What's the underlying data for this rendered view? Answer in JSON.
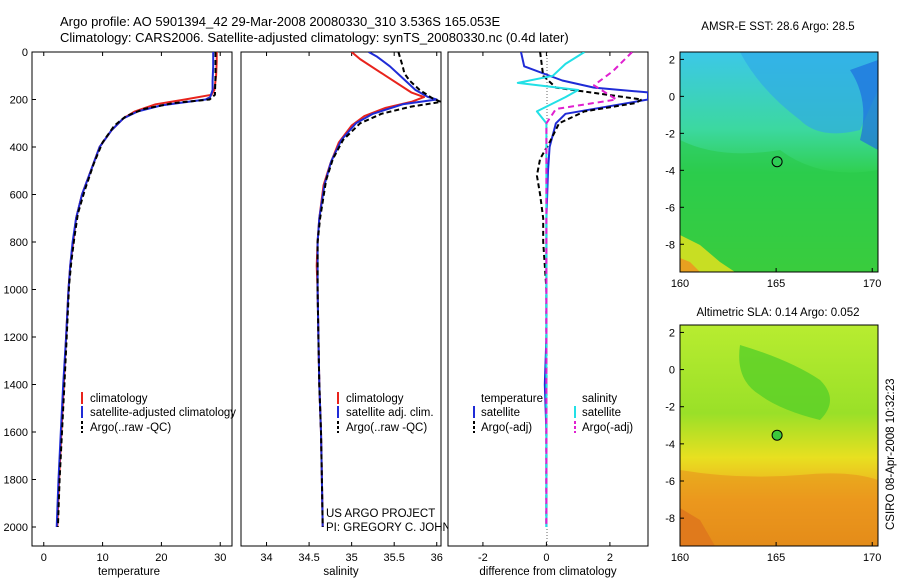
{
  "header": {
    "line1": "Argo profile: AO 5901394_42 29-Mar-2008 20080330_310 3.536S 165.053E",
    "line2": "Climatology: CARS2006. Satellite-adjusted climatology: synTS_20080330.nc (0.4d later)"
  },
  "colors": {
    "climatology": "#e8231c",
    "satellite": "#1f2bd6",
    "argo": "#000000",
    "sal_satellite": "#22e0e6",
    "sal_argo": "#e020d0"
  },
  "credit": {
    "line1": "US ARGO PROJECT",
    "line2": "PI: GREGORY C. JOHNSON"
  },
  "timestamp": "CSIRO 08-Apr-2008 10:32:23",
  "depth_axis": {
    "ticks": [
      0,
      200,
      400,
      600,
      800,
      1000,
      1200,
      1400,
      1600,
      1800,
      2000
    ],
    "range": [
      0,
      2080
    ]
  },
  "chart_data": [
    {
      "type": "line",
      "name": "temperature-profile",
      "xlabel": "temperature",
      "xlim": [
        -2,
        32
      ],
      "xticks": [
        0,
        10,
        20,
        30
      ],
      "ylim": [
        0,
        2080
      ],
      "legend": [
        "climatology",
        "satellite-adjusted climatology",
        "Argo(..raw -QC)"
      ],
      "series": [
        {
          "name": "climatology",
          "color": "#e8231c",
          "dash": "",
          "points": [
            [
              29.4,
              0
            ],
            [
              29.4,
              40
            ],
            [
              29.3,
              100
            ],
            [
              29.0,
              160
            ],
            [
              28.5,
              180
            ],
            [
              24.0,
              200
            ],
            [
              19.0,
              220
            ],
            [
              15.5,
              250
            ],
            [
              13.5,
              280
            ],
            [
              11.5,
              330
            ],
            [
              9.5,
              400
            ],
            [
              8.0,
              500
            ],
            [
              6.5,
              600
            ],
            [
              5.5,
              700
            ],
            [
              5.0,
              800
            ],
            [
              4.5,
              900
            ],
            [
              4.2,
              1000
            ],
            [
              3.8,
              1200
            ],
            [
              3.4,
              1400
            ],
            [
              3.0,
              1600
            ],
            [
              2.6,
              1800
            ],
            [
              2.3,
              2000
            ]
          ]
        },
        {
          "name": "satellite",
          "color": "#1f2bd6",
          "dash": "",
          "points": [
            [
              28.8,
              0
            ],
            [
              28.8,
              60
            ],
            [
              28.7,
              120
            ],
            [
              28.7,
              160
            ],
            [
              28.3,
              190
            ],
            [
              27.5,
              200
            ],
            [
              20.0,
              225
            ],
            [
              16.0,
              250
            ],
            [
              13.5,
              280
            ],
            [
              11.5,
              330
            ],
            [
              9.5,
              400
            ],
            [
              8.0,
              500
            ],
            [
              6.5,
              600
            ],
            [
              5.5,
              700
            ],
            [
              4.9,
              800
            ],
            [
              4.5,
              900
            ],
            [
              4.2,
              1000
            ],
            [
              3.8,
              1200
            ],
            [
              3.3,
              1400
            ],
            [
              2.9,
              1600
            ],
            [
              2.5,
              1800
            ],
            [
              2.2,
              2000
            ]
          ]
        },
        {
          "name": "Argo",
          "color": "#000000",
          "dash": "5,3",
          "points": [
            [
              29.2,
              0
            ],
            [
              29.2,
              100
            ],
            [
              29.1,
              180
            ],
            [
              28.2,
              200
            ],
            [
              22.0,
              215
            ],
            [
              17.0,
              240
            ],
            [
              14.0,
              270
            ],
            [
              12.0,
              310
            ],
            [
              10.0,
              380
            ],
            [
              8.5,
              470
            ],
            [
              7.0,
              580
            ],
            [
              5.8,
              680
            ],
            [
              5.2,
              780
            ],
            [
              4.7,
              880
            ],
            [
              4.3,
              980
            ],
            [
              3.9,
              1200
            ],
            [
              3.5,
              1400
            ],
            [
              3.1,
              1600
            ],
            [
              2.7,
              1800
            ],
            [
              2.4,
              2000
            ]
          ]
        }
      ]
    },
    {
      "type": "line",
      "name": "salinity-profile",
      "xlabel": "salinity",
      "xlim": [
        33.7,
        36.05
      ],
      "xticks": [
        34,
        34.5,
        35,
        35.5,
        36
      ],
      "ylim": [
        0,
        2080
      ],
      "legend": [
        "climatology",
        "satellite adj. clim.",
        "Argo(..raw -QC)"
      ],
      "series": [
        {
          "name": "climatology",
          "color": "#e8231c",
          "dash": "",
          "points": [
            [
              35.0,
              0
            ],
            [
              35.1,
              30
            ],
            [
              35.4,
              100
            ],
            [
              35.7,
              170
            ],
            [
              35.85,
              190
            ],
            [
              35.7,
              210
            ],
            [
              35.4,
              235
            ],
            [
              35.15,
              270
            ],
            [
              35.0,
              310
            ],
            [
              34.85,
              380
            ],
            [
              34.75,
              470
            ],
            [
              34.67,
              560
            ],
            [
              34.62,
              700
            ],
            [
              34.6,
              800
            ],
            [
              34.59,
              900
            ],
            [
              34.6,
              1000
            ],
            [
              34.61,
              1200
            ],
            [
              34.62,
              1400
            ],
            [
              34.64,
              1600
            ],
            [
              34.65,
              1800
            ],
            [
              34.66,
              2000
            ]
          ]
        },
        {
          "name": "satellite",
          "color": "#1f2bd6",
          "dash": "",
          "points": [
            [
              35.2,
              0
            ],
            [
              35.3,
              20
            ],
            [
              35.45,
              60
            ],
            [
              35.6,
              110
            ],
            [
              35.75,
              160
            ],
            [
              35.9,
              190
            ],
            [
              36.0,
              200
            ],
            [
              35.6,
              220
            ],
            [
              35.25,
              260
            ],
            [
              35.05,
              300
            ],
            [
              34.88,
              370
            ],
            [
              34.76,
              460
            ],
            [
              34.68,
              560
            ],
            [
              34.62,
              700
            ],
            [
              34.6,
              800
            ],
            [
              34.6,
              900
            ],
            [
              34.6,
              1000
            ],
            [
              34.61,
              1200
            ],
            [
              34.62,
              1400
            ],
            [
              34.64,
              1600
            ],
            [
              34.65,
              1800
            ],
            [
              34.66,
              2000
            ]
          ]
        },
        {
          "name": "Argo",
          "color": "#000000",
          "dash": "5,3",
          "points": [
            [
              35.55,
              0
            ],
            [
              35.6,
              60
            ],
            [
              35.62,
              90
            ],
            [
              35.68,
              120
            ],
            [
              35.8,
              160
            ],
            [
              35.95,
              195
            ],
            [
              36.05,
              210
            ],
            [
              35.7,
              230
            ],
            [
              35.35,
              260
            ],
            [
              35.1,
              300
            ],
            [
              34.9,
              370
            ],
            [
              34.78,
              450
            ],
            [
              34.7,
              540
            ],
            [
              34.63,
              700
            ],
            [
              34.6,
              800
            ],
            [
              34.6,
              900
            ],
            [
              34.6,
              1000
            ],
            [
              34.61,
              1200
            ],
            [
              34.62,
              1400
            ],
            [
              34.64,
              1600
            ],
            [
              34.65,
              1800
            ],
            [
              34.66,
              2000
            ]
          ]
        }
      ]
    },
    {
      "type": "line",
      "name": "difference-profile",
      "xlabel": "difference from climatology",
      "xlim": [
        -3.1,
        3.2
      ],
      "xticks": [
        -2,
        0,
        2
      ],
      "ylim": [
        0,
        2080
      ],
      "legend_groups": [
        {
          "title": "temperature",
          "items": [
            "satellite",
            "Argo(-adj)"
          ]
        },
        {
          "title": "salinity",
          "items": [
            "satellite",
            "Argo(-adj)"
          ]
        }
      ],
      "series": [
        {
          "name": "temperature satellite",
          "color": "#1f2bd6",
          "dash": "",
          "points": [
            [
              -0.8,
              0
            ],
            [
              -0.7,
              60
            ],
            [
              0.5,
              120
            ],
            [
              1.5,
              150
            ],
            [
              3.2,
              170
            ],
            [
              3.2,
              200
            ],
            [
              0.6,
              260
            ],
            [
              0.3,
              300
            ],
            [
              0.1,
              400
            ],
            [
              0.05,
              500
            ],
            [
              0.0,
              700
            ],
            [
              0.0,
              900
            ],
            [
              0.0,
              1200
            ],
            [
              -0.05,
              1400
            ],
            [
              0.0,
              1600
            ],
            [
              0.0,
              2000
            ]
          ]
        },
        {
          "name": "temperature Argo",
          "color": "#000000",
          "dash": "5,3",
          "points": [
            [
              -0.2,
              0
            ],
            [
              -0.1,
              100
            ],
            [
              0.3,
              150
            ],
            [
              3.0,
              200
            ],
            [
              2.8,
              215
            ],
            [
              1.2,
              250
            ],
            [
              0.4,
              300
            ],
            [
              0.1,
              380
            ],
            [
              -0.2,
              450
            ],
            [
              -0.3,
              520
            ],
            [
              -0.2,
              600
            ],
            [
              -0.1,
              700
            ],
            [
              -0.1,
              800
            ],
            [
              0.0,
              1000
            ],
            [
              0.0,
              1200
            ],
            [
              0.0,
              1400
            ],
            [
              0.0,
              1600
            ],
            [
              0.0,
              2000
            ]
          ]
        },
        {
          "name": "salinity satellite",
          "color": "#22e0e6",
          "dash": "",
          "points": [
            [
              1.2,
              0
            ],
            [
              0.6,
              50
            ],
            [
              0.2,
              100
            ],
            [
              -0.9,
              130
            ],
            [
              1.0,
              160
            ],
            [
              0.6,
              190
            ],
            [
              -0.3,
              250
            ],
            [
              0.0,
              300
            ],
            [
              0.0,
              400
            ],
            [
              0.0,
              600
            ],
            [
              0.0,
              800
            ],
            [
              0.0,
              1000
            ],
            [
              0.0,
              1400
            ],
            [
              0.0,
              2000
            ]
          ]
        },
        {
          "name": "salinity Argo",
          "color": "#e020d0",
          "dash": "6,4",
          "points": [
            [
              2.7,
              0
            ],
            [
              2.1,
              80
            ],
            [
              1.5,
              140
            ],
            [
              2.2,
              200
            ],
            [
              0.3,
              240
            ],
            [
              0.0,
              300
            ],
            [
              0.0,
              500
            ],
            [
              0.0,
              800
            ],
            [
              0.0,
              1200
            ],
            [
              0.0,
              2000
            ]
          ]
        }
      ]
    },
    {
      "type": "heatmap",
      "name": "sst-map",
      "title": "AMSR-E SST: 28.6 Argo: 28.5",
      "xlim": [
        160,
        170.3
      ],
      "ylim": [
        -9.5,
        2.4
      ],
      "xticks": [
        160,
        165,
        170
      ],
      "yticks": [
        2,
        0,
        -2,
        -4,
        -6,
        -8
      ],
      "argo_marker": {
        "lon": 165.053,
        "lat": -3.536
      }
    },
    {
      "type": "heatmap",
      "name": "sla-map",
      "title": "Altimetric SLA: 0.14 Argo: 0.052",
      "xlim": [
        160,
        170.3
      ],
      "ylim": [
        -9.5,
        2.4
      ],
      "xticks": [
        160,
        165,
        170
      ],
      "yticks": [
        2,
        0,
        -2,
        -4,
        -6,
        -8
      ],
      "argo_marker": {
        "lon": 165.053,
        "lat": -3.536
      }
    }
  ]
}
